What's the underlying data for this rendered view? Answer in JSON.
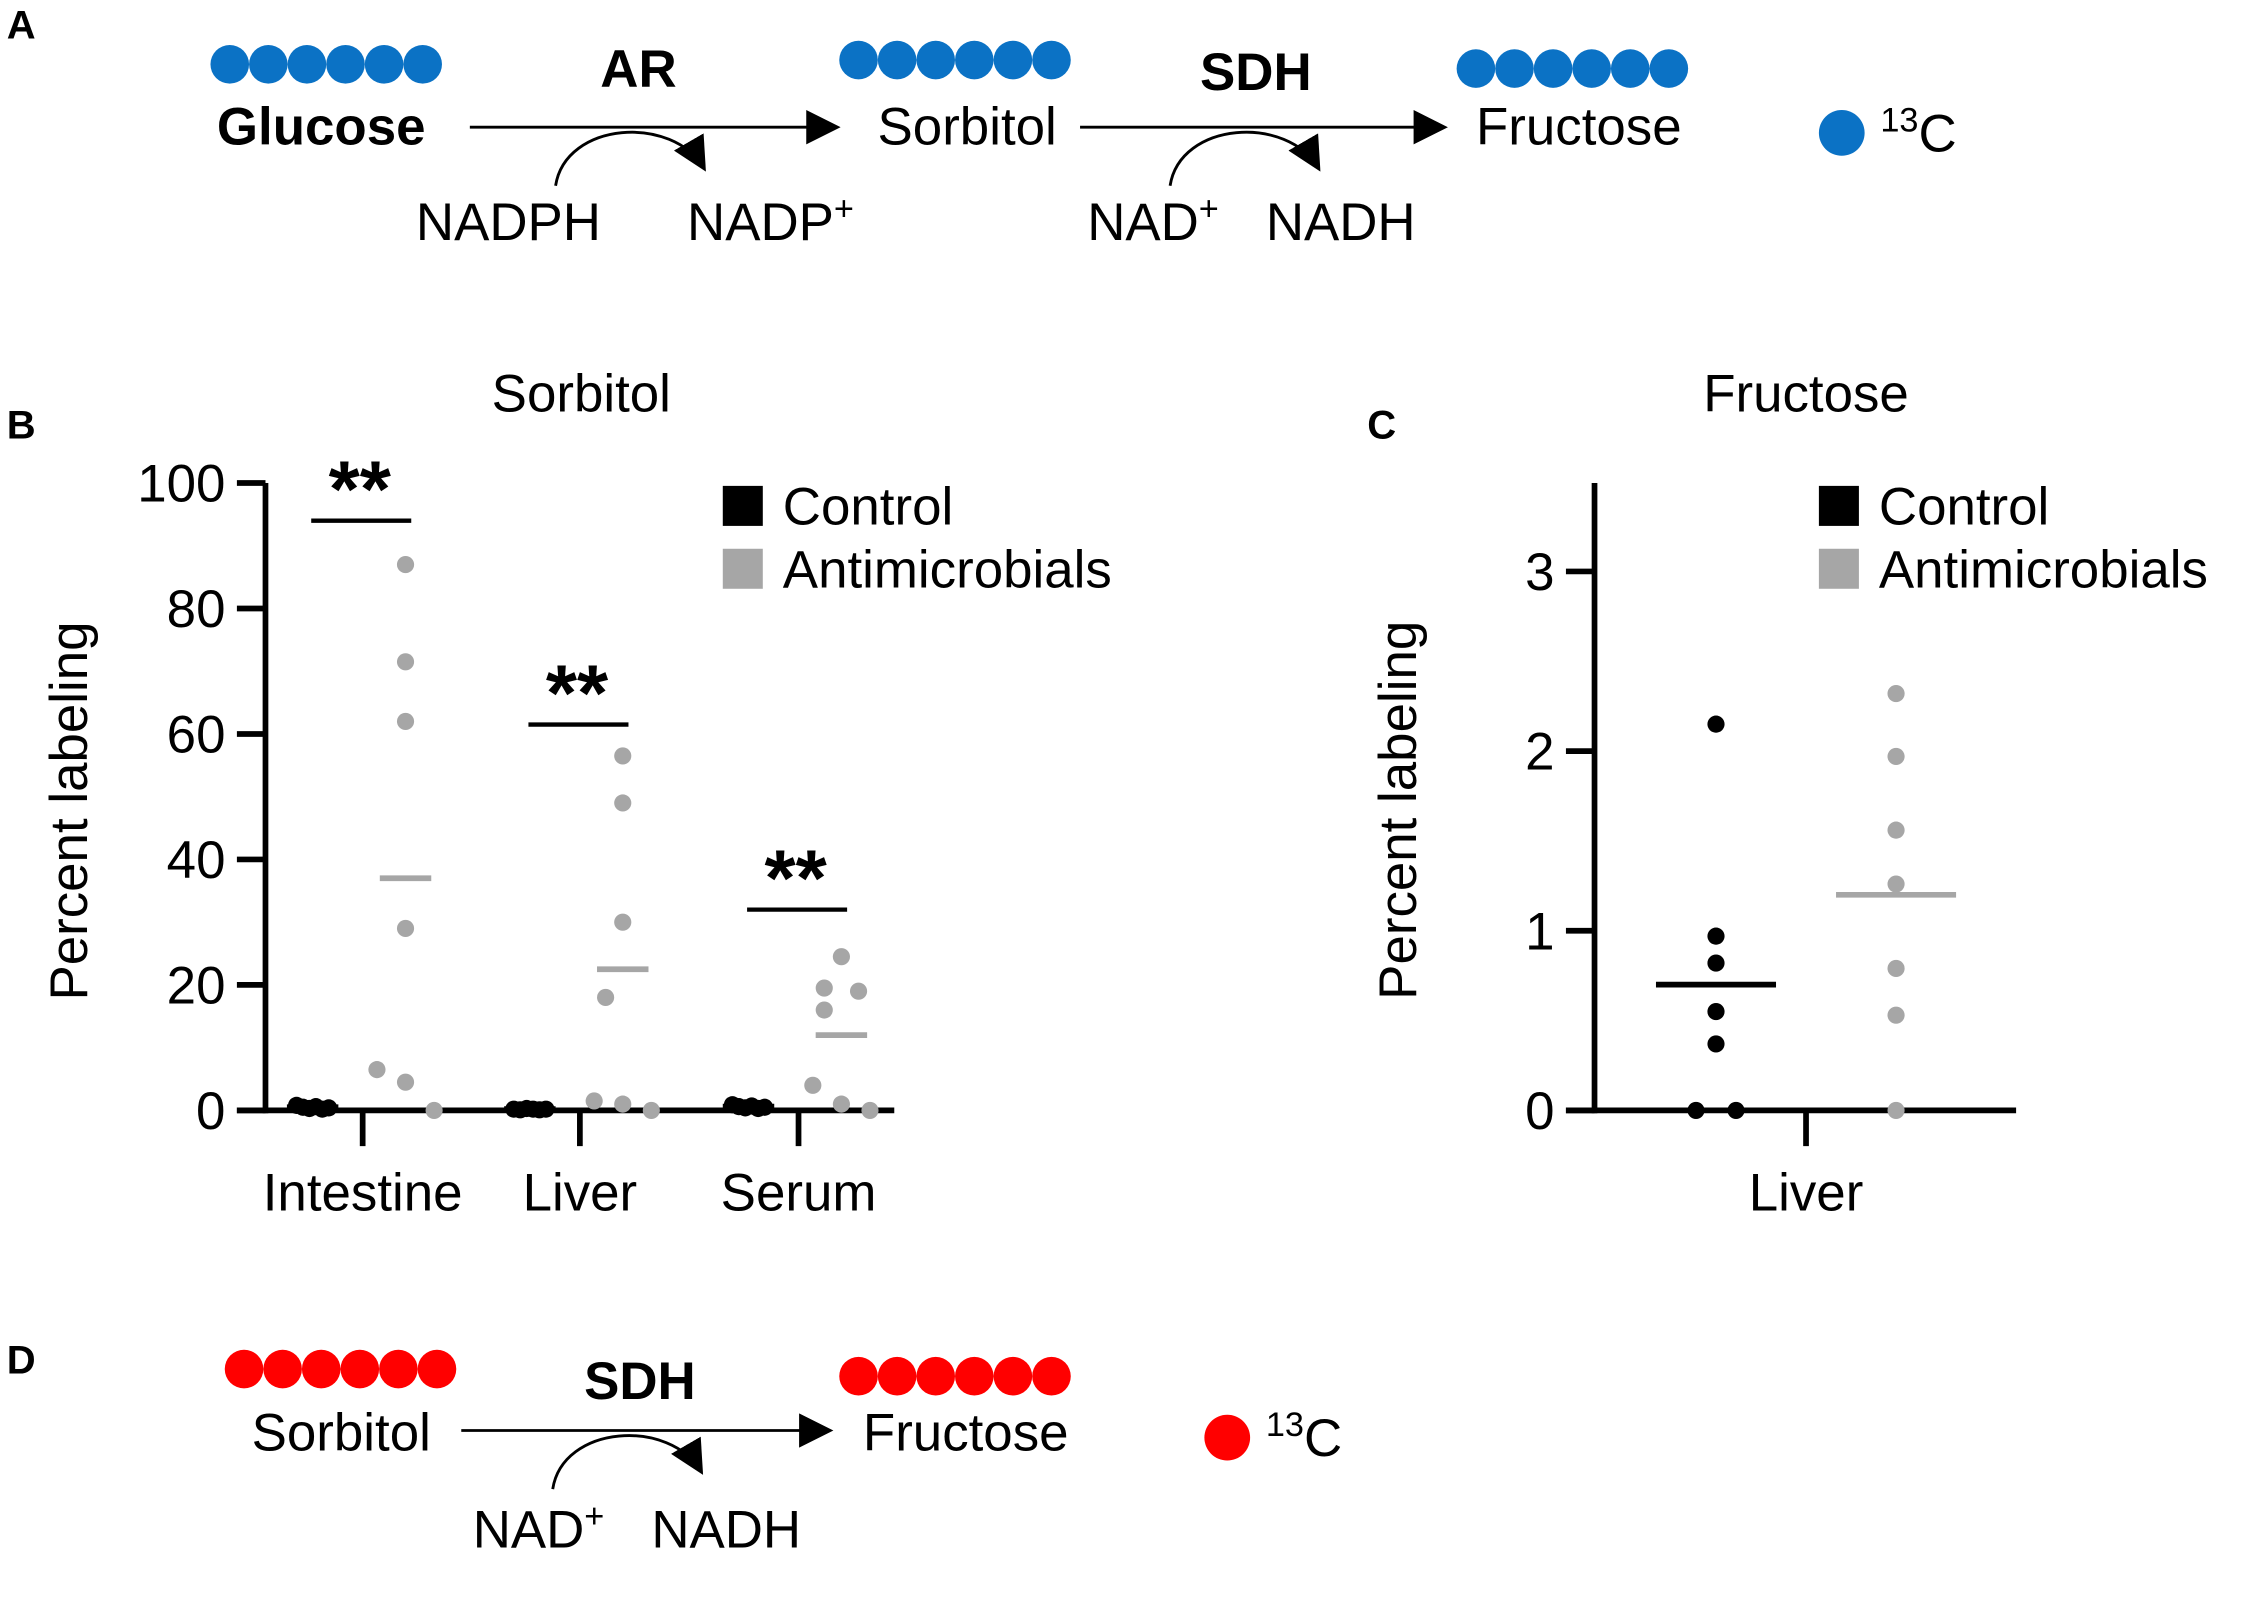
{
  "panel_labels": {
    "a": "A",
    "b": "B",
    "c": "C",
    "d": "D"
  },
  "panel_a": {
    "substrate": "Glucose",
    "enzyme1": "AR",
    "intermediate": "Sorbitol",
    "enzyme2": "SDH",
    "product": "Fructose",
    "cofactor1_in": "NADPH",
    "cofactor1_out": {
      "base": "NADP",
      "sup": "+"
    },
    "cofactor2_in": {
      "base": "NAD",
      "sup": "+"
    },
    "cofactor2_out": "NADH",
    "legend": {
      "sup": "13",
      "base": "C"
    },
    "color": "#0b72c5",
    "carbons": 6
  },
  "panel_d": {
    "substrate": "Sorbitol",
    "enzyme": "SDH",
    "product": "Fructose",
    "cofactor_in": {
      "base": "NAD",
      "sup": "+"
    },
    "cofactor_out": "NADH",
    "legend": {
      "sup": "13",
      "base": "C"
    },
    "color": "#ff0000",
    "carbons": 6
  },
  "chart_data": [
    {
      "type": "scatter",
      "title": "Sorbitol",
      "ylabel": "Percent labeling",
      "xlabel": "",
      "ylim": [
        0,
        100
      ],
      "yticks": [
        "0",
        "20",
        "40",
        "60",
        "80",
        "100"
      ],
      "categories": [
        "Intestine",
        "Liver",
        "Serum"
      ],
      "legend": [
        "Control",
        "Antimicrobials"
      ],
      "legend_position": "top-right",
      "colors": {
        "Control": "#000000",
        "Antimicrobials": "#a6a6a6"
      },
      "series": [
        {
          "name": "Control",
          "values": [
            [
              0.8,
              0.5,
              0.3,
              0.6,
              0.2,
              0.4
            ],
            [
              0.2,
              0.1,
              0.3,
              0.2,
              0.1,
              0.2
            ],
            [
              0.9,
              0.6,
              0.4,
              0.7,
              0.3,
              0.5
            ]
          ],
          "means": [
            0.5,
            0.2,
            0.6
          ]
        },
        {
          "name": "Antimicrobials",
          "values": [
            [
              87,
              71.5,
              62,
              29,
              6.5,
              4.5,
              0
            ],
            [
              56.5,
              49,
              30,
              18,
              1.5,
              1,
              0
            ],
            [
              24.5,
              19.5,
              19,
              16,
              4,
              1,
              0
            ]
          ],
          "means": [
            37,
            22.5,
            12
          ]
        }
      ],
      "significance": [
        {
          "label": "**",
          "level": 94
        },
        {
          "label": "**",
          "level": 61.5
        },
        {
          "label": "**",
          "level": 32
        }
      ]
    },
    {
      "type": "scatter",
      "title": "Fructose",
      "ylabel": "Percent labeling",
      "xlabel": "",
      "ylim": [
        0,
        3.5
      ],
      "yticks": [
        "0",
        "1",
        "2",
        "3"
      ],
      "categories": [
        "Liver"
      ],
      "legend": [
        "Control",
        "Antimicrobials"
      ],
      "legend_position": "top-right",
      "colors": {
        "Control": "#000000",
        "Antimicrobials": "#a6a6a6"
      },
      "series": [
        {
          "name": "Control",
          "values": [
            [
              2.15,
              0.97,
              0.82,
              0.55,
              0.37,
              0,
              0
            ]
          ],
          "means": [
            0.7
          ]
        },
        {
          "name": "Antimicrobials",
          "values": [
            [
              2.32,
              1.97,
              1.56,
              1.26,
              0.79,
              0.53,
              0
            ]
          ],
          "means": [
            1.2
          ]
        }
      ]
    }
  ]
}
